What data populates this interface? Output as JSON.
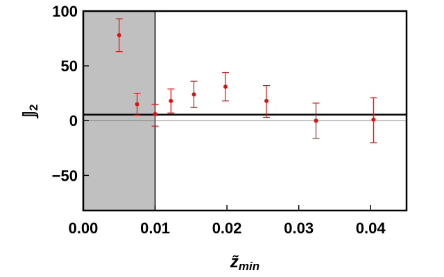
{
  "chart_data": {
    "type": "scatter",
    "xlabel": "z̃",
    "xlabel_sub": "min",
    "ylabel": "𝕁",
    "ylabel_sub": "2",
    "xlim": [
      0.0,
      0.045
    ],
    "ylim": [
      -82,
      100
    ],
    "x_ticks": [
      0.0,
      0.01,
      0.02,
      0.03,
      0.04
    ],
    "x_tick_labels": [
      "0.00",
      "0.01",
      "0.02",
      "0.03",
      "0.04"
    ],
    "y_ticks": [
      100,
      50,
      0,
      -50
    ],
    "y_tick_labels": [
      "100",
      "50",
      "0",
      "−50"
    ],
    "grid": false,
    "shaded_region": {
      "x_from": 0.0,
      "x_to": 0.01,
      "color": "#c0c0c0"
    },
    "reference_lines": [
      {
        "y": 5.5,
        "color": "#000000",
        "weight": "thick"
      },
      {
        "y": 0.0,
        "color": "#666666",
        "weight": "thin"
      }
    ],
    "series": [
      {
        "color": "#e01010",
        "points": [
          {
            "x": 0.005,
            "y": 78,
            "y_low": 63,
            "y_high": 93
          },
          {
            "x": 0.0075,
            "y": 15,
            "y_low": 5,
            "y_high": 25
          },
          {
            "x": 0.01,
            "y": 6,
            "y_low": -5,
            "y_high": 15
          },
          {
            "x": 0.0122,
            "y": 18,
            "y_low": 7,
            "y_high": 29
          },
          {
            "x": 0.0154,
            "y": 24,
            "y_low": 12,
            "y_high": 36
          },
          {
            "x": 0.0198,
            "y": 31,
            "y_low": 18,
            "y_high": 44
          },
          {
            "x": 0.0255,
            "y": 18,
            "y_low": 3,
            "y_high": 32
          },
          {
            "x": 0.0324,
            "y": 0,
            "y_low": -16,
            "y_high": 16
          },
          {
            "x": 0.0404,
            "y": 1,
            "y_low": -20,
            "y_high": 21
          }
        ]
      }
    ]
  }
}
